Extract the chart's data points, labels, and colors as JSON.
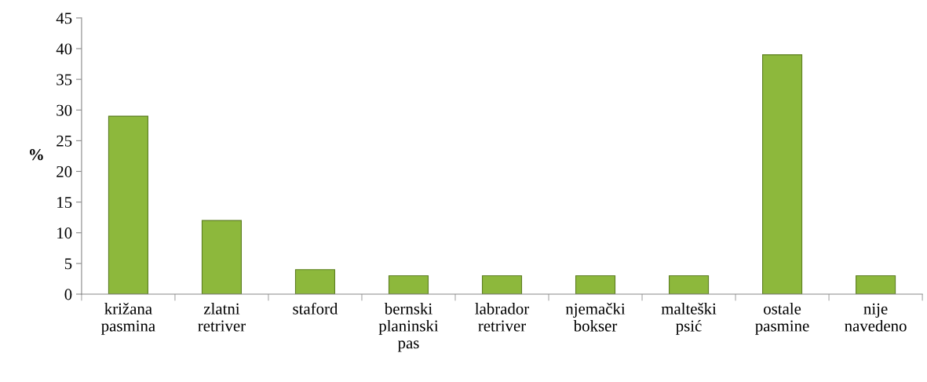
{
  "chart_data": {
    "type": "bar",
    "ylabel": "%",
    "categories": [
      "križana\npasmina",
      "zlatni\nretriver",
      "staford",
      "bernski\nplaninski\npas",
      "labrador\nretriver",
      "njemački\nbokser",
      "malteški\npsić",
      "ostale\npasmine",
      "nije\nnavedeno"
    ],
    "values": [
      29,
      12,
      4,
      3,
      3,
      3,
      3,
      39,
      3
    ],
    "color": "#8db83c",
    "ylim": [
      0,
      45
    ],
    "yticks": [
      0,
      5,
      10,
      15,
      20,
      25,
      30,
      35,
      40,
      45
    ],
    "grid": false
  }
}
